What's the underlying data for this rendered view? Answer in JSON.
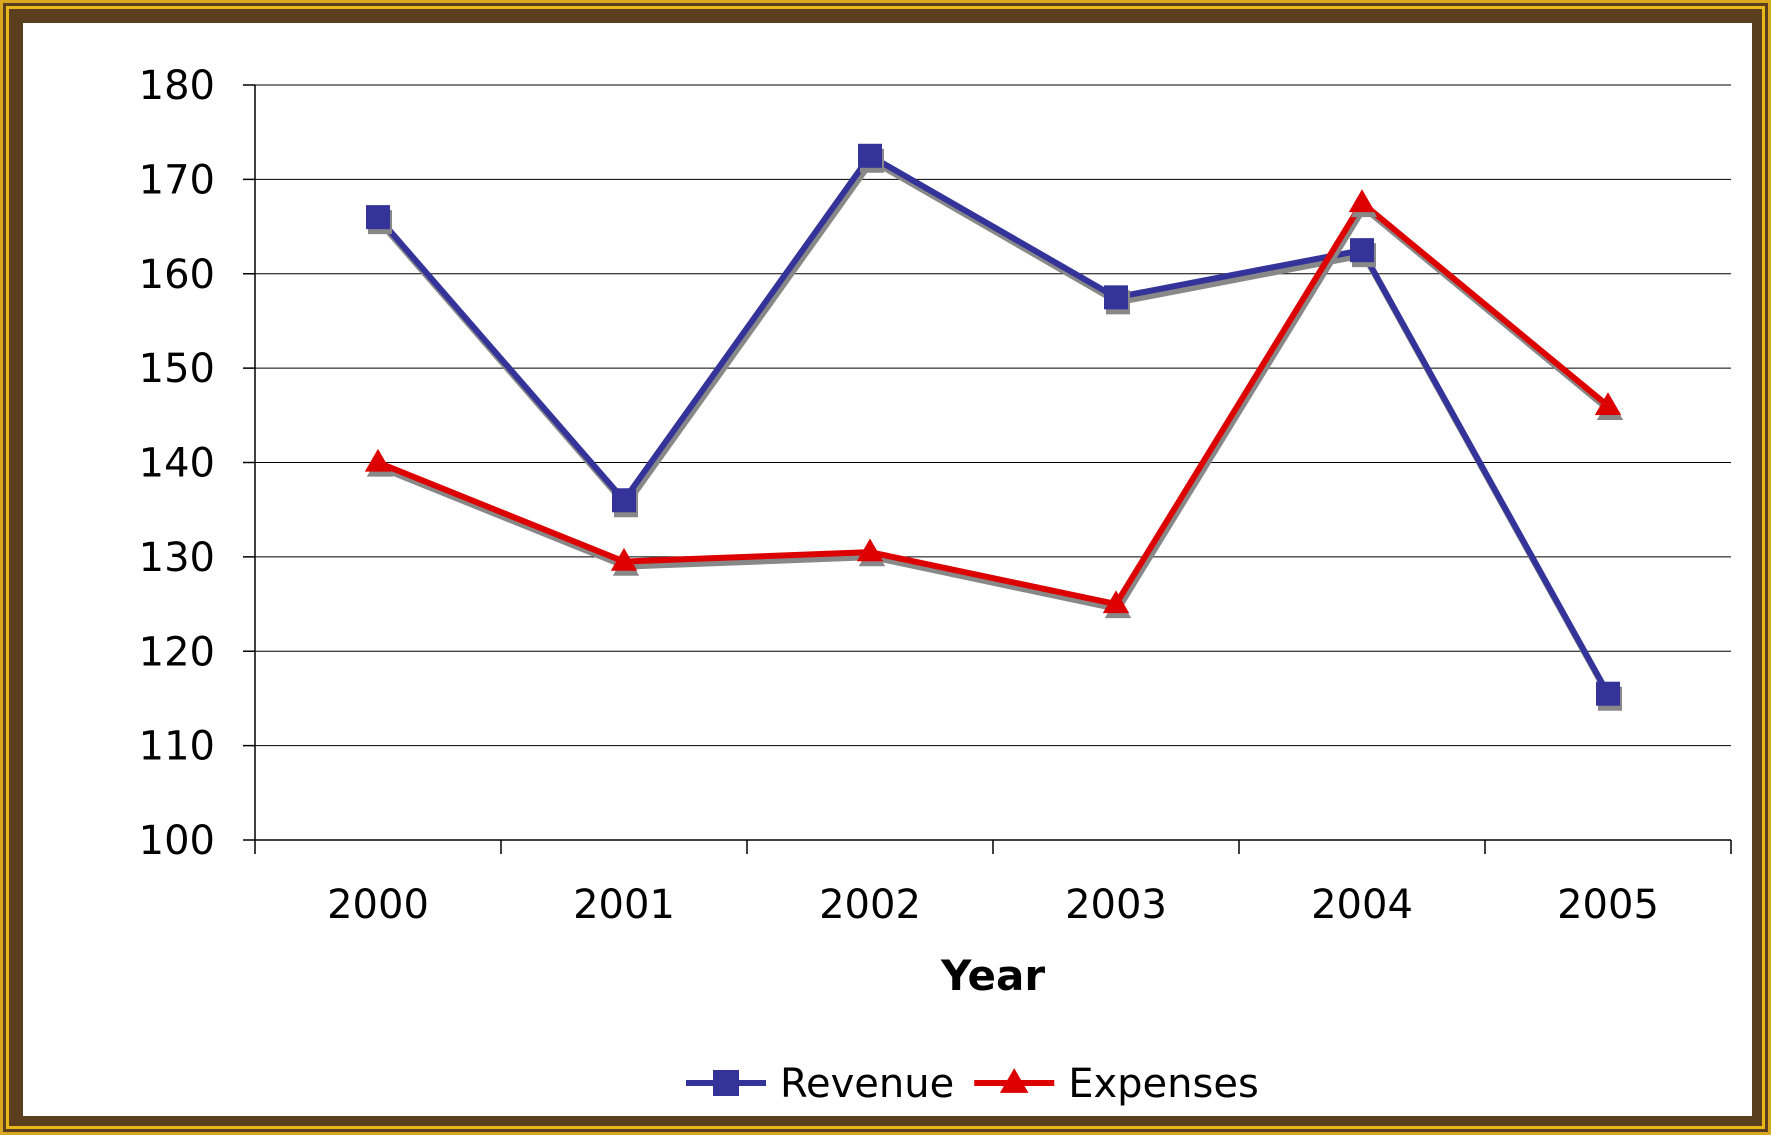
{
  "chart_data": {
    "type": "line",
    "title": "",
    "xlabel": "Year",
    "ylabel": "",
    "categories": [
      "2000",
      "2001",
      "2002",
      "2003",
      "2004",
      "2005"
    ],
    "ylim": [
      100,
      180
    ],
    "yticks": [
      "100",
      "110",
      "120",
      "130",
      "140",
      "150",
      "160",
      "170",
      "180"
    ],
    "grid": true,
    "legend_position": "bottom",
    "series": [
      {
        "name": "Revenue",
        "values": [
          166,
          136,
          172.5,
          157.5,
          162.5,
          115.5
        ],
        "color": "#333399",
        "marker": "square"
      },
      {
        "name": "Expenses",
        "values": [
          140,
          129.5,
          130.5,
          125,
          167.5,
          146
        ],
        "color": "#dd0000",
        "marker": "triangle"
      }
    ]
  }
}
